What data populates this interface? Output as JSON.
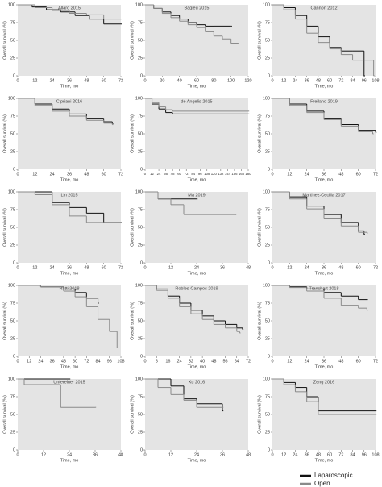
{
  "legend": [
    {
      "name": "Laparoscopic",
      "color": "#111111"
    },
    {
      "name": "Open",
      "color": "#8a8a8a"
    }
  ],
  "chart_data": [
    {
      "type": "line",
      "title": "Allard 2015",
      "xlabel": "Time, mo",
      "ylabel": "Overall survival (%)",
      "xlim": [
        0,
        72
      ],
      "xticks": [
        0,
        12,
        24,
        36,
        48,
        60,
        72
      ],
      "ylim": [
        0,
        100
      ],
      "yticks": [
        0,
        25,
        50,
        75,
        100
      ],
      "series": [
        {
          "color": "#111111",
          "x": [
            0,
            10,
            20,
            30,
            40,
            50,
            60,
            72
          ],
          "values": [
            100,
            97,
            93,
            90,
            85,
            80,
            73,
            73
          ]
        },
        {
          "color": "#8a8a8a",
          "x": [
            0,
            12,
            24,
            36,
            48,
            60,
            72
          ],
          "values": [
            100,
            96,
            92,
            88,
            86,
            80,
            80
          ]
        }
      ]
    },
    {
      "type": "line",
      "title": "Bagieu 2015",
      "xlabel": "Time, mo",
      "ylabel": "Overall survival (%)",
      "xlim": [
        0,
        120
      ],
      "xticks": [
        0,
        20,
        40,
        60,
        80,
        100,
        120
      ],
      "ylim": [
        0,
        100
      ],
      "yticks": [
        0,
        25,
        50,
        75,
        100
      ],
      "series": [
        {
          "color": "#111111",
          "x": [
            0,
            10,
            20,
            30,
            40,
            50,
            60,
            70,
            80,
            100
          ],
          "values": [
            100,
            95,
            90,
            85,
            80,
            75,
            72,
            70,
            70,
            70
          ]
        },
        {
          "color": "#8a8a8a",
          "x": [
            0,
            10,
            20,
            30,
            40,
            50,
            60,
            70,
            80,
            90,
            100,
            108
          ],
          "values": [
            100,
            95,
            88,
            82,
            77,
            72,
            68,
            62,
            56,
            52,
            46,
            46
          ]
        }
      ]
    },
    {
      "type": "line",
      "title": "Cannon 2012",
      "xlabel": "Time, mo",
      "ylabel": "Overall survival (%)",
      "xlim": [
        0,
        108
      ],
      "xticks": [
        0,
        12,
        24,
        36,
        48,
        60,
        72,
        84,
        96,
        108
      ],
      "ylim": [
        0,
        100
      ],
      "yticks": [
        0,
        25,
        50,
        75,
        100
      ],
      "series": [
        {
          "color": "#111111",
          "x": [
            0,
            12,
            24,
            36,
            48,
            60,
            72,
            84,
            96
          ],
          "values": [
            100,
            96,
            85,
            70,
            55,
            40,
            35,
            35,
            0
          ]
        },
        {
          "color": "#8a8a8a",
          "x": [
            0,
            12,
            24,
            36,
            48,
            60,
            72,
            84,
            96,
            106
          ],
          "values": [
            100,
            93,
            80,
            60,
            47,
            38,
            30,
            22,
            22,
            0
          ]
        }
      ]
    },
    {
      "type": "line",
      "title": "Cipriani 2016",
      "xlabel": "Time, mo",
      "ylabel": "Overall survival (%)",
      "xlim": [
        0,
        72
      ],
      "xticks": [
        0,
        12,
        24,
        36,
        48,
        60,
        72
      ],
      "ylim": [
        0,
        100
      ],
      "yticks": [
        0,
        25,
        50,
        75,
        100
      ],
      "series": [
        {
          "color": "#111111",
          "x": [
            0,
            12,
            24,
            36,
            48,
            60,
            66
          ],
          "values": [
            100,
            92,
            85,
            78,
            72,
            67,
            64
          ]
        },
        {
          "color": "#8a8a8a",
          "x": [
            0,
            12,
            24,
            36,
            48,
            60,
            66
          ],
          "values": [
            100,
            90,
            82,
            75,
            69,
            65,
            63
          ]
        }
      ]
    },
    {
      "type": "line",
      "title": "de Angelis 2015",
      "xlabel": "Time, mo",
      "ylabel": "Overall survival (%)",
      "xlim": [
        0,
        180
      ],
      "xticks": [
        0,
        12,
        24,
        36,
        48,
        60,
        72,
        84,
        96,
        108,
        120,
        132,
        144,
        156,
        168,
        180
      ],
      "ylim": [
        0,
        100
      ],
      "yticks": [
        0,
        25,
        50,
        75,
        100
      ],
      "series": [
        {
          "color": "#111111",
          "x": [
            0,
            12,
            24,
            36,
            48,
            60,
            180
          ],
          "values": [
            100,
            92,
            85,
            80,
            78,
            78,
            78
          ]
        },
        {
          "color": "#8a8a8a",
          "x": [
            0,
            12,
            24,
            36,
            48,
            180
          ],
          "values": [
            100,
            94,
            88,
            84,
            82,
            82
          ]
        }
      ]
    },
    {
      "type": "line",
      "title": "Freiland 2019",
      "xlabel": "Time, mo",
      "ylabel": "Overall survival (%)",
      "xlim": [
        0,
        72
      ],
      "xticks": [
        0,
        12,
        24,
        36,
        48,
        60,
        72
      ],
      "ylim": [
        0,
        100
      ],
      "yticks": [
        0,
        25,
        50,
        75,
        100
      ],
      "series": [
        {
          "color": "#111111",
          "x": [
            0,
            12,
            24,
            36,
            48,
            60,
            72
          ],
          "values": [
            100,
            92,
            82,
            72,
            63,
            55,
            52
          ]
        },
        {
          "color": "#8a8a8a",
          "x": [
            0,
            12,
            24,
            36,
            48,
            60,
            70
          ],
          "values": [
            100,
            90,
            80,
            70,
            61,
            53,
            50
          ]
        }
      ]
    },
    {
      "type": "line",
      "title": "Lin 2015",
      "xlabel": "Time, mo",
      "ylabel": "Overall survival (%)",
      "xlim": [
        0,
        72
      ],
      "xticks": [
        0,
        12,
        24,
        36,
        48,
        60,
        72
      ],
      "ylim": [
        0,
        100
      ],
      "yticks": [
        0,
        25,
        50,
        75,
        100
      ],
      "series": [
        {
          "color": "#111111",
          "x": [
            0,
            12,
            24,
            36,
            48,
            60,
            72
          ],
          "values": [
            100,
            100,
            85,
            78,
            70,
            57,
            57
          ]
        },
        {
          "color": "#8a8a8a",
          "x": [
            0,
            12,
            24,
            36,
            48,
            72
          ],
          "values": [
            100,
            96,
            82,
            66,
            57,
            57
          ]
        }
      ]
    },
    {
      "type": "line",
      "title": "Ma 2019",
      "xlabel": "Time, mo",
      "ylabel": "Overall survival (%)",
      "xlim": [
        0,
        48
      ],
      "xticks": [
        0,
        12,
        24,
        36,
        48
      ],
      "ylim": [
        0,
        100
      ],
      "yticks": [
        0,
        25,
        50,
        75,
        100
      ],
      "series": [
        {
          "color": "#111111",
          "x": [
            0,
            6,
            24
          ],
          "values": [
            100,
            90,
            90
          ]
        },
        {
          "color": "#8a8a8a",
          "x": [
            0,
            6,
            12,
            18,
            42
          ],
          "values": [
            100,
            90,
            82,
            68,
            68
          ]
        }
      ]
    },
    {
      "type": "line",
      "title": "Martinez-Cecilia 2017",
      "xlabel": "Time, mo",
      "ylabel": "Overall survival (%)",
      "xlim": [
        0,
        72
      ],
      "xticks": [
        0,
        12,
        24,
        36,
        48,
        60,
        72
      ],
      "ylim": [
        0,
        100
      ],
      "yticks": [
        0,
        25,
        50,
        75,
        100
      ],
      "series": [
        {
          "color": "#111111",
          "x": [
            0,
            12,
            24,
            36,
            48,
            60,
            64
          ],
          "values": [
            100,
            93,
            80,
            68,
            57,
            45,
            40
          ]
        },
        {
          "color": "#8a8a8a",
          "x": [
            0,
            12,
            24,
            36,
            48,
            60,
            66
          ],
          "values": [
            100,
            90,
            76,
            63,
            52,
            43,
            42
          ]
        }
      ]
    },
    {
      "type": "line",
      "title": "Ratti 2018",
      "xlabel": "Time, mo",
      "ylabel": "Overall survival (%)",
      "xlim": [
        0,
        108
      ],
      "xticks": [
        0,
        12,
        24,
        36,
        48,
        60,
        72,
        84,
        96,
        108
      ],
      "ylim": [
        0,
        100
      ],
      "yticks": [
        0,
        25,
        50,
        75,
        100
      ],
      "series": [
        {
          "color": "#111111",
          "x": [
            0,
            24,
            48,
            60,
            72,
            84
          ],
          "values": [
            100,
            98,
            95,
            90,
            82,
            75
          ]
        },
        {
          "color": "#8a8a8a",
          "x": [
            0,
            24,
            48,
            60,
            72,
            84,
            96,
            104
          ],
          "values": [
            100,
            98,
            92,
            84,
            70,
            52,
            35,
            12
          ]
        }
      ]
    },
    {
      "type": "line",
      "title": "Robles-Campos 2019",
      "xlabel": "Time, mo",
      "ylabel": "Overall survival (%)",
      "xlim": [
        0,
        72
      ],
      "xticks": [
        0,
        8,
        16,
        24,
        32,
        40,
        48,
        56,
        64,
        72
      ],
      "ylim": [
        0,
        100
      ],
      "yticks": [
        0,
        25,
        50,
        75,
        100
      ],
      "series": [
        {
          "color": "#111111",
          "x": [
            0,
            8,
            16,
            24,
            32,
            40,
            48,
            56,
            64,
            68
          ],
          "values": [
            100,
            95,
            85,
            75,
            65,
            57,
            50,
            45,
            40,
            38
          ]
        },
        {
          "color": "#8a8a8a",
          "x": [
            0,
            8,
            16,
            24,
            32,
            40,
            48,
            56,
            64,
            66
          ],
          "values": [
            100,
            93,
            82,
            70,
            60,
            52,
            45,
            40,
            35,
            33
          ]
        }
      ]
    },
    {
      "type": "line",
      "title": "Tranchart 2018",
      "xlabel": "Time, mo",
      "ylabel": "Overall survival (%)",
      "xlim": [
        0,
        72
      ],
      "xticks": [
        0,
        12,
        24,
        36,
        48,
        60,
        72
      ],
      "ylim": [
        0,
        100
      ],
      "yticks": [
        0,
        25,
        50,
        75,
        100
      ],
      "series": [
        {
          "color": "#111111",
          "x": [
            0,
            12,
            24,
            36,
            48,
            60,
            66
          ],
          "values": [
            100,
            98,
            95,
            90,
            85,
            80,
            80
          ]
        },
        {
          "color": "#8a8a8a",
          "x": [
            0,
            12,
            24,
            36,
            48,
            60,
            66
          ],
          "values": [
            100,
            97,
            92,
            82,
            72,
            68,
            65
          ]
        }
      ]
    },
    {
      "type": "line",
      "title": "Untereiner 2015",
      "xlabel": "Time, mo",
      "ylabel": "Overall survival (%)",
      "xlim": [
        0,
        48
      ],
      "xticks": [
        0,
        12,
        24,
        36,
        48
      ],
      "ylim": [
        0,
        100
      ],
      "yticks": [
        0,
        25,
        50,
        75,
        100
      ],
      "series": [
        {
          "color": "#111111",
          "x": [
            0,
            24
          ],
          "values": [
            100,
            100
          ]
        },
        {
          "color": "#8a8a8a",
          "x": [
            0,
            3,
            20,
            36
          ],
          "values": [
            100,
            92,
            60,
            60
          ]
        }
      ]
    },
    {
      "type": "line",
      "title": "Xu 2016",
      "xlabel": "Time, mo",
      "ylabel": "Overall survival (%)",
      "xlim": [
        0,
        48
      ],
      "xticks": [
        0,
        12,
        24,
        36,
        48
      ],
      "ylim": [
        0,
        100
      ],
      "yticks": [
        0,
        25,
        50,
        75,
        100
      ],
      "series": [
        {
          "color": "#111111",
          "x": [
            0,
            12,
            18,
            24,
            36
          ],
          "values": [
            100,
            90,
            72,
            65,
            55
          ]
        },
        {
          "color": "#8a8a8a",
          "x": [
            0,
            6,
            12,
            18,
            24,
            36
          ],
          "values": [
            100,
            88,
            78,
            70,
            60,
            60
          ]
        }
      ]
    },
    {
      "type": "line",
      "title": "Zeng 2016",
      "xlabel": "Time, mo",
      "ylabel": "Overall survival (%)",
      "xlim": [
        0,
        108
      ],
      "xticks": [
        0,
        12,
        24,
        36,
        48,
        60,
        72,
        84,
        96,
        108
      ],
      "ylim": [
        0,
        100
      ],
      "yticks": [
        0,
        25,
        50,
        75,
        100
      ],
      "series": [
        {
          "color": "#111111",
          "x": [
            0,
            12,
            24,
            36,
            48,
            108
          ],
          "values": [
            100,
            95,
            88,
            75,
            55,
            55
          ]
        },
        {
          "color": "#8a8a8a",
          "x": [
            0,
            12,
            24,
            36,
            48,
            108
          ],
          "values": [
            100,
            92,
            82,
            68,
            50,
            50
          ]
        }
      ]
    }
  ]
}
